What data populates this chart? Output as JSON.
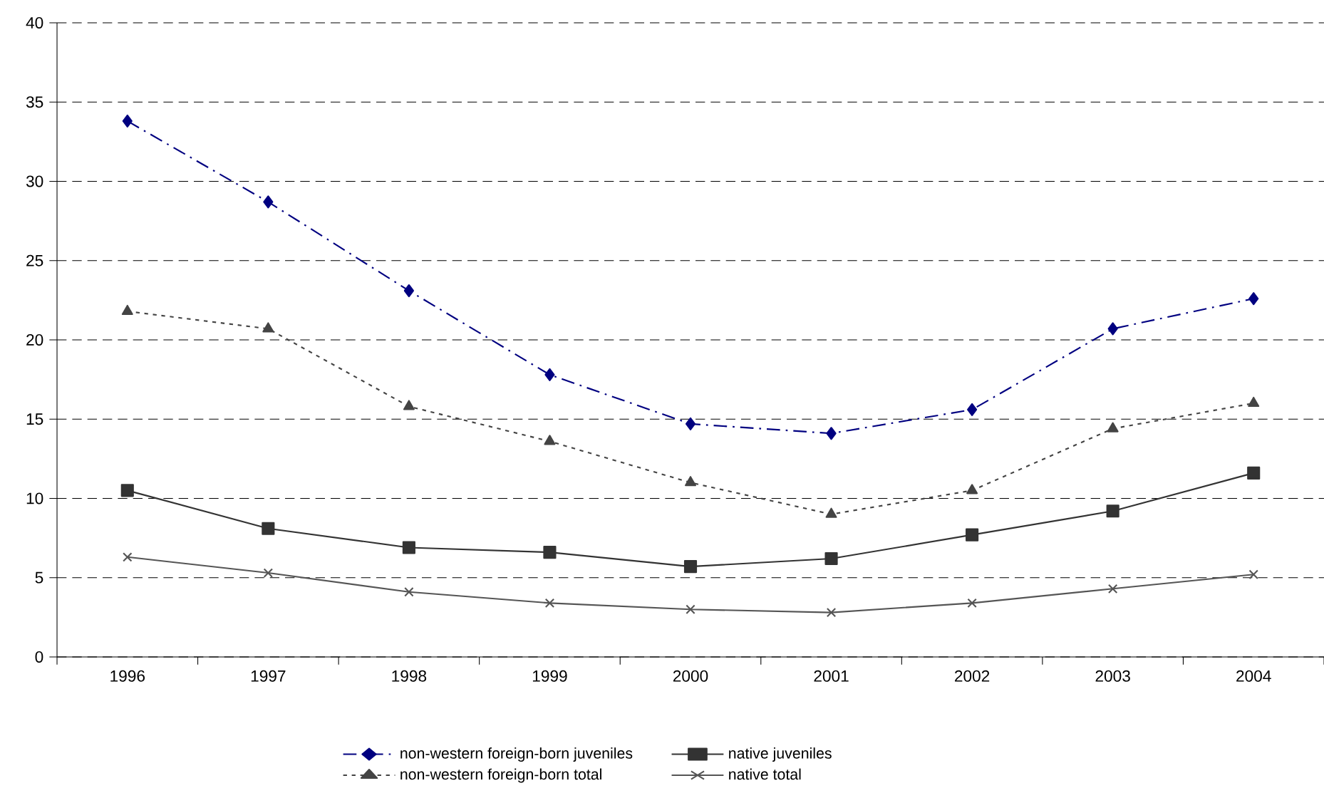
{
  "chart_data": {
    "type": "line",
    "categories": [
      "1996",
      "1997",
      "1998",
      "1999",
      "2000",
      "2001",
      "2002",
      "2003",
      "2004"
    ],
    "series": [
      {
        "name": "non-western foreign-born juveniles",
        "color": "#000080",
        "marker": "diamond",
        "line_style": "dashed",
        "values": [
          33.8,
          28.7,
          23.1,
          17.8,
          14.7,
          14.1,
          15.6,
          20.7,
          22.6
        ]
      },
      {
        "name": "native juveniles",
        "color": "#333333",
        "marker": "square",
        "line_style": "solid",
        "values": [
          10.5,
          8.1,
          6.9,
          6.6,
          5.7,
          6.2,
          7.7,
          9.2,
          11.6
        ]
      },
      {
        "name": "non-western foreign-born total",
        "color": "#444444",
        "marker": "triangle",
        "line_style": "dotted",
        "values": [
          21.8,
          20.7,
          15.8,
          13.6,
          11.0,
          9.0,
          10.5,
          14.4,
          16.0
        ]
      },
      {
        "name": "native total",
        "color": "#555555",
        "marker": "cross",
        "line_style": "solid",
        "values": [
          6.3,
          5.3,
          4.1,
          3.4,
          3.0,
          2.8,
          3.4,
          4.3,
          5.2
        ]
      }
    ],
    "ylim": [
      0,
      40
    ],
    "yticks": [
      0,
      5,
      10,
      15,
      20,
      25,
      30,
      35,
      40
    ],
    "grid": "y",
    "legend": "bottom"
  }
}
